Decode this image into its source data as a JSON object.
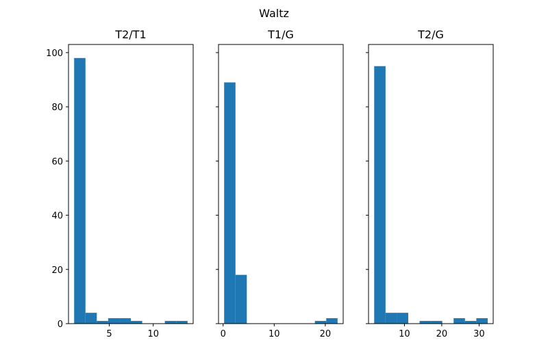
{
  "chart_data": {
    "suptitle": "Waltz",
    "colors": {
      "bar": "#1f77b4",
      "frame": "#000000",
      "background": "#ffffff"
    },
    "shared_y": true,
    "ylim": [
      0,
      103
    ],
    "yticks": [
      0,
      20,
      40,
      60,
      80,
      100
    ],
    "grid": false,
    "panels": [
      {
        "type": "bar",
        "title": "T2/T1",
        "xlim": [
          0.36,
          14.54
        ],
        "xticks": [
          5,
          10
        ],
        "bins": [
          {
            "x0": 1.0,
            "x1": 2.29,
            "count": 98
          },
          {
            "x0": 2.29,
            "x1": 3.58,
            "count": 4
          },
          {
            "x0": 3.58,
            "x1": 4.87,
            "count": 1
          },
          {
            "x0": 4.87,
            "x1": 6.16,
            "count": 2
          },
          {
            "x0": 6.16,
            "x1": 7.45,
            "count": 2
          },
          {
            "x0": 7.45,
            "x1": 8.74,
            "count": 1
          },
          {
            "x0": 8.74,
            "x1": 10.03,
            "count": 0
          },
          {
            "x0": 10.03,
            "x1": 11.32,
            "count": 0
          },
          {
            "x0": 11.32,
            "x1": 12.61,
            "count": 1
          },
          {
            "x0": 12.61,
            "x1": 13.9,
            "count": 1
          }
        ]
      },
      {
        "type": "bar",
        "title": "T1/G",
        "xlim": [
          -0.9,
          23.5
        ],
        "xticks": [
          0,
          10,
          20
        ],
        "bins": [
          {
            "x0": 0.2,
            "x1": 2.42,
            "count": 89
          },
          {
            "x0": 2.42,
            "x1": 4.64,
            "count": 18
          },
          {
            "x0": 4.64,
            "x1": 6.86,
            "count": 0
          },
          {
            "x0": 6.86,
            "x1": 9.08,
            "count": 0
          },
          {
            "x0": 9.08,
            "x1": 11.3,
            "count": 0
          },
          {
            "x0": 11.3,
            "x1": 13.52,
            "count": 0
          },
          {
            "x0": 13.52,
            "x1": 15.74,
            "count": 0
          },
          {
            "x0": 15.74,
            "x1": 17.96,
            "count": 0
          },
          {
            "x0": 17.96,
            "x1": 20.18,
            "count": 1
          },
          {
            "x0": 20.18,
            "x1": 22.4,
            "count": 2
          }
        ]
      },
      {
        "type": "bar",
        "title": "T2/G",
        "xlim": [
          0.38,
          33.78
        ],
        "xticks": [
          10,
          20,
          30
        ],
        "bins": [
          {
            "x0": 1.9,
            "x1": 4.94,
            "count": 95
          },
          {
            "x0": 4.94,
            "x1": 7.98,
            "count": 4
          },
          {
            "x0": 7.98,
            "x1": 11.02,
            "count": 4
          },
          {
            "x0": 11.02,
            "x1": 14.06,
            "count": 0
          },
          {
            "x0": 14.06,
            "x1": 17.1,
            "count": 1
          },
          {
            "x0": 17.1,
            "x1": 20.14,
            "count": 1
          },
          {
            "x0": 20.14,
            "x1": 23.18,
            "count": 0
          },
          {
            "x0": 23.18,
            "x1": 26.22,
            "count": 2
          },
          {
            "x0": 26.22,
            "x1": 29.26,
            "count": 1
          },
          {
            "x0": 29.26,
            "x1": 32.3,
            "count": 2
          }
        ]
      }
    ]
  }
}
